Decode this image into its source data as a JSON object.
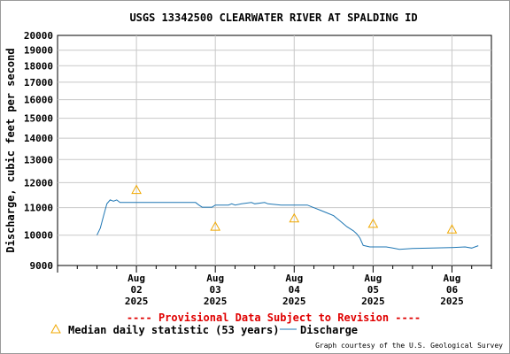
{
  "chart_data": {
    "type": "line",
    "title": "USGS 13342500 CLEARWATER RIVER AT SPALDING ID",
    "ylabel": "Discharge, cubic feet per second",
    "xlabel": "",
    "y_scale": "log",
    "ylim": [
      9000,
      20000
    ],
    "y_ticks": [
      9000,
      10000,
      11000,
      12000,
      13000,
      14000,
      15000,
      16000,
      17000,
      18000,
      19000,
      20000
    ],
    "x_range_days": [
      "2025-08-01T00:00",
      "2025-08-06T12:00"
    ],
    "x_ticks": [
      {
        "date": "2025-08-02T00:00",
        "lines": [
          "Aug",
          "02",
          "2025"
        ]
      },
      {
        "date": "2025-08-03T00:00",
        "lines": [
          "Aug",
          "03",
          "2025"
        ]
      },
      {
        "date": "2025-08-04T00:00",
        "lines": [
          "Aug",
          "04",
          "2025"
        ]
      },
      {
        "date": "2025-08-05T00:00",
        "lines": [
          "Aug",
          "05",
          "2025"
        ]
      },
      {
        "date": "2025-08-06T00:00",
        "lines": [
          "Aug",
          "06",
          "2025"
        ]
      }
    ],
    "grid": true,
    "series": [
      {
        "name": "Discharge",
        "color": "#1f77b4",
        "points": [
          [
            "2025-08-01T12:00",
            10000
          ],
          [
            "2025-08-01T13:00",
            10250
          ],
          [
            "2025-08-01T14:00",
            10700
          ],
          [
            "2025-08-01T15:00",
            11150
          ],
          [
            "2025-08-01T16:00",
            11300
          ],
          [
            "2025-08-01T17:00",
            11250
          ],
          [
            "2025-08-01T18:00",
            11300
          ],
          [
            "2025-08-01T19:00",
            11200
          ],
          [
            "2025-08-01T20:00",
            11200
          ],
          [
            "2025-08-02T00:00",
            11200
          ],
          [
            "2025-08-02T12:00",
            11200
          ],
          [
            "2025-08-02T18:00",
            11200
          ],
          [
            "2025-08-02T19:00",
            11100
          ],
          [
            "2025-08-02T20:00",
            11020
          ],
          [
            "2025-08-02T23:00",
            11020
          ],
          [
            "2025-08-03T00:00",
            11100
          ],
          [
            "2025-08-03T04:00",
            11100
          ],
          [
            "2025-08-03T05:00",
            11150
          ],
          [
            "2025-08-03T06:00",
            11100
          ],
          [
            "2025-08-03T08:00",
            11150
          ],
          [
            "2025-08-03T11:00",
            11200
          ],
          [
            "2025-08-03T12:00",
            11150
          ],
          [
            "2025-08-03T15:00",
            11200
          ],
          [
            "2025-08-03T16:00",
            11150
          ],
          [
            "2025-08-03T20:00",
            11100
          ],
          [
            "2025-08-04T00:00",
            11100
          ],
          [
            "2025-08-04T04:00",
            11100
          ],
          [
            "2025-08-04T05:00",
            11050
          ],
          [
            "2025-08-04T06:00",
            11000
          ],
          [
            "2025-08-04T08:00",
            10900
          ],
          [
            "2025-08-04T10:00",
            10800
          ],
          [
            "2025-08-04T12:00",
            10700
          ],
          [
            "2025-08-04T14:00",
            10500
          ],
          [
            "2025-08-04T16:00",
            10300
          ],
          [
            "2025-08-04T18:00",
            10150
          ],
          [
            "2025-08-04T19:00",
            10050
          ],
          [
            "2025-08-04T20:00",
            9900
          ],
          [
            "2025-08-04T21:00",
            9650
          ],
          [
            "2025-08-04T23:00",
            9600
          ],
          [
            "2025-08-05T00:00",
            9600
          ],
          [
            "2025-08-05T04:00",
            9600
          ],
          [
            "2025-08-05T06:00",
            9560
          ],
          [
            "2025-08-05T08:00",
            9520
          ],
          [
            "2025-08-05T12:00",
            9550
          ],
          [
            "2025-08-05T18:00",
            9560
          ],
          [
            "2025-08-06T00:00",
            9580
          ],
          [
            "2025-08-06T04:00",
            9600
          ],
          [
            "2025-08-06T06:00",
            9560
          ],
          [
            "2025-08-06T08:00",
            9640
          ]
        ]
      }
    ],
    "median_points": {
      "name": "Median daily statistic (53 years)",
      "color": "#f0a800",
      "points": [
        [
          "2025-08-02T00:00",
          11700
        ],
        [
          "2025-08-03T00:00",
          10300
        ],
        [
          "2025-08-04T00:00",
          10600
        ],
        [
          "2025-08-05T00:00",
          10400
        ],
        [
          "2025-08-06T00:00",
          10200
        ]
      ]
    }
  },
  "provisional_text": "---- Provisional Data Subject to Revision ----",
  "provisional_color": "#e00000",
  "legend": {
    "median_label": "Median daily statistic (53 years)",
    "discharge_label": "Discharge"
  },
  "credit": "Graph courtesy of the U.S. Geological Survey"
}
